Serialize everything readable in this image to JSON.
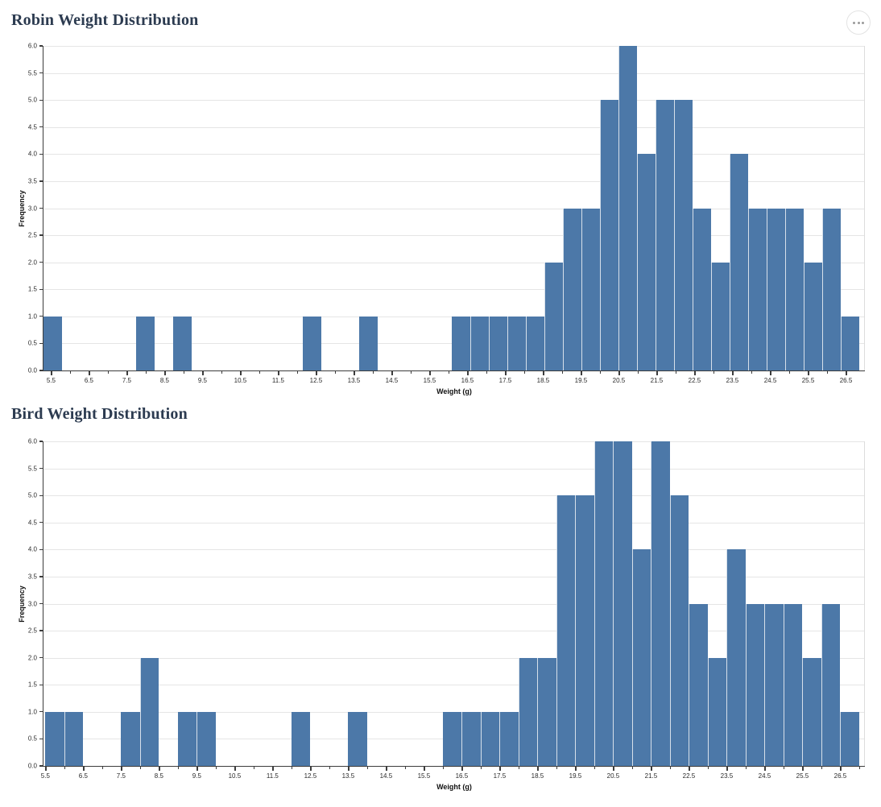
{
  "page": {
    "background": "#ffffff"
  },
  "toolbar": {
    "more_options_icon": "ellipsis"
  },
  "chart_data": [
    {
      "type": "bar",
      "subtype": "histogram",
      "title": "Robin Weight Distribution",
      "xlabel": "Weight (g)",
      "ylabel": "Frequency",
      "xlim": [
        5.3,
        27.0
      ],
      "ylim": [
        0,
        6.0
      ],
      "bin_start": 5.3,
      "bin_width": 0.49,
      "counts": [
        1,
        0,
        0,
        0,
        0,
        1,
        0,
        1,
        0,
        0,
        0,
        0,
        0,
        0,
        1,
        0,
        0,
        1,
        0,
        0,
        0,
        0,
        1,
        1,
        1,
        1,
        1,
        2,
        3,
        3,
        5,
        6,
        4,
        5,
        5,
        3,
        2,
        4,
        3,
        3,
        3,
        2,
        3,
        1
      ],
      "x_major_ticks": [
        5.5,
        6.5,
        7.5,
        8.5,
        9.5,
        10.5,
        11.5,
        12.5,
        13.5,
        14.5,
        15.5,
        16.5,
        17.5,
        18.5,
        19.5,
        20.5,
        21.5,
        22.5,
        23.5,
        24.5,
        25.5,
        26.5
      ],
      "x_minor_ticks": [
        6,
        7,
        8,
        9,
        10,
        11,
        12,
        13,
        14,
        15,
        16,
        17,
        18,
        19,
        20,
        21,
        22,
        23,
        24,
        25,
        26,
        27
      ],
      "y_ticks": [
        0,
        0.5,
        1,
        1.5,
        2,
        2.5,
        3,
        3.5,
        4,
        4.5,
        5,
        5.5,
        6
      ],
      "grid": "horizontal",
      "legend": "none",
      "bar_color": "#4c78a8",
      "bar_edge_color": "#d7e0ea",
      "grid_color": "#e5e5e5"
    },
    {
      "type": "bar",
      "subtype": "histogram",
      "title": "Bird Weight Distribution",
      "xlabel": "Weight (g)",
      "ylabel": "Frequency",
      "xlim": [
        5.45,
        27.15
      ],
      "ylim": [
        0,
        6.0
      ],
      "bin_start": 5.5,
      "bin_width": 0.5,
      "counts": [
        1,
        1,
        0,
        0,
        1,
        2,
        0,
        1,
        1,
        0,
        0,
        0,
        0,
        1,
        0,
        0,
        1,
        0,
        0,
        0,
        0,
        1,
        1,
        1,
        1,
        2,
        2,
        5,
        5,
        6,
        6,
        4,
        6,
        5,
        3,
        2,
        4,
        3,
        3,
        3,
        2,
        3,
        1
      ],
      "x_major_ticks": [
        5.5,
        6.5,
        7.5,
        8.5,
        9.5,
        10.5,
        11.5,
        12.5,
        13.5,
        14.5,
        15.5,
        16.5,
        17.5,
        18.5,
        19.5,
        20.5,
        21.5,
        22.5,
        23.5,
        24.5,
        25.5,
        26.5
      ],
      "x_minor_ticks": [
        6,
        7,
        8,
        9,
        10,
        11,
        12,
        13,
        14,
        15,
        16,
        17,
        18,
        19,
        20,
        21,
        22,
        23,
        24,
        25,
        26,
        27
      ],
      "y_ticks": [
        0,
        0.5,
        1,
        1.5,
        2,
        2.5,
        3,
        3.5,
        4,
        4.5,
        5,
        5.5,
        6
      ],
      "grid": "horizontal",
      "legend": "none",
      "bar_color": "#4c78a8",
      "bar_edge_color": "#d7e0ea",
      "grid_color": "#e5e5e5"
    }
  ]
}
